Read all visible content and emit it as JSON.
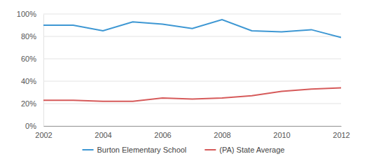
{
  "chart_data": {
    "type": "line",
    "x": [
      2002,
      2003,
      2004,
      2005,
      2006,
      2007,
      2008,
      2009,
      2010,
      2011,
      2012
    ],
    "series": [
      {
        "name": "Burton Elementary School",
        "color": "#3d97d3",
        "values": [
          90,
          90,
          85,
          93,
          91,
          87,
          95,
          85,
          84,
          86,
          79
        ]
      },
      {
        "name": "(PA) State Average",
        "color": "#d65a5a",
        "values": [
          23,
          23,
          22,
          22,
          25,
          24,
          25,
          27,
          31,
          33,
          34
        ]
      }
    ],
    "xlim": [
      2002,
      2012
    ],
    "xticks": [
      2002,
      2004,
      2006,
      2008,
      2010,
      2012
    ],
    "ylim": [
      0,
      100
    ],
    "yticks": [
      {
        "value": 0,
        "label": "0%"
      },
      {
        "value": 20,
        "label": "20%"
      },
      {
        "value": 40,
        "label": "40%"
      },
      {
        "value": 60,
        "label": "60%"
      },
      {
        "value": 80,
        "label": "80%"
      },
      {
        "value": 100,
        "label": "100%"
      }
    ],
    "grid": true,
    "legend": "bottom"
  }
}
